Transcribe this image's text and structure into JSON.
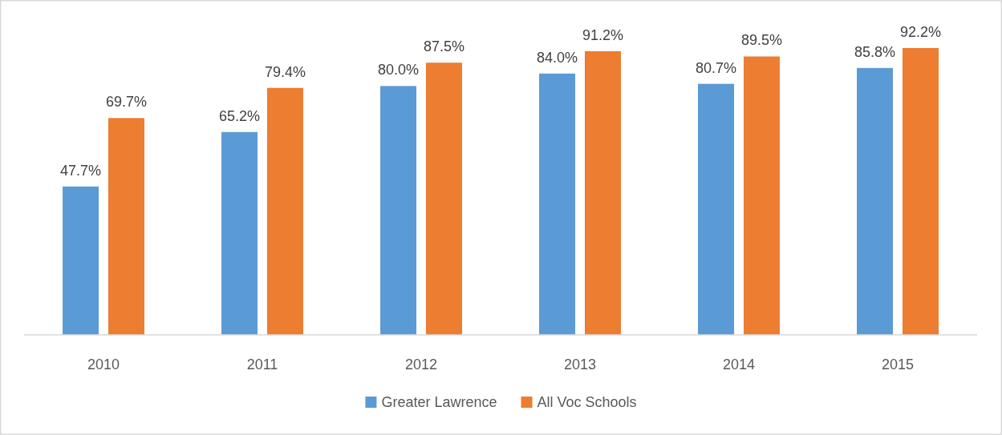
{
  "chart_data": {
    "type": "bar",
    "categories": [
      "2010",
      "2011",
      "2012",
      "2013",
      "2014",
      "2015"
    ],
    "series": [
      {
        "name": "Greater Lawrence",
        "color": "#5b9bd5",
        "values": [
          47.7,
          65.2,
          80.0,
          84.0,
          80.7,
          85.8
        ],
        "value_labels": [
          "47.7%",
          "65.2%",
          "80.0%",
          "84.0%",
          "80.7%",
          "85.8%"
        ]
      },
      {
        "name": "All Voc Schools",
        "color": "#ed7d31",
        "values": [
          69.7,
          79.4,
          87.5,
          91.2,
          89.5,
          92.2
        ],
        "value_labels": [
          "69.7%",
          "79.4%",
          "87.5%",
          "91.2%",
          "89.5%",
          "92.2%"
        ]
      }
    ],
    "tick_labels": "x",
    "legend": "bottom"
  }
}
